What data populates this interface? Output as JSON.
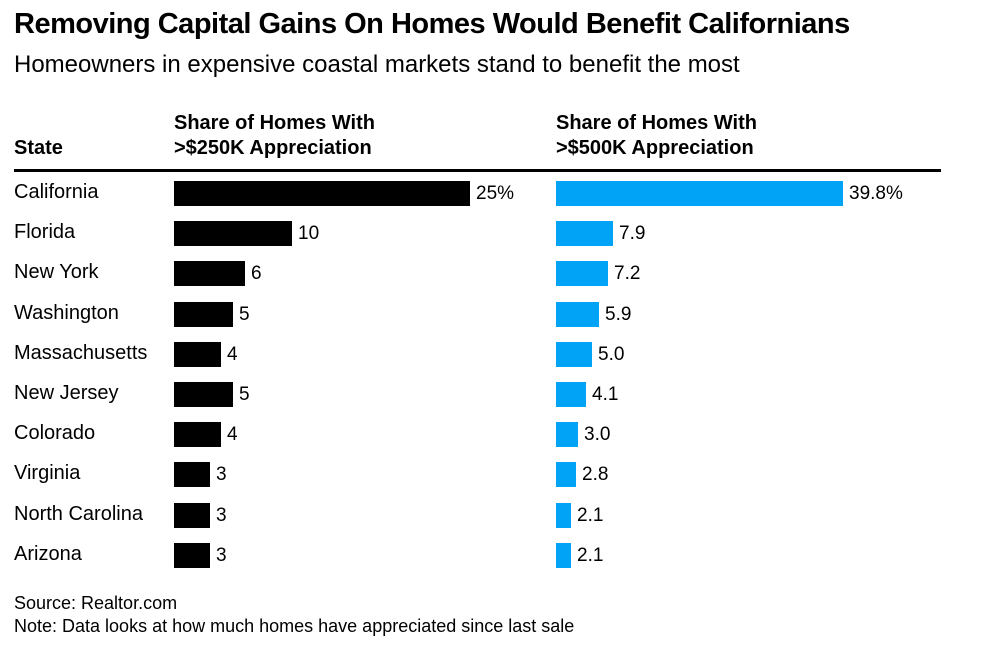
{
  "chart_data": {
    "type": "bar",
    "title": "Removing Capital Gains On Homes Would Benefit Californians",
    "subtitle": "Homeowners in expensive coastal markets stand to benefit the most",
    "category_header": "State",
    "categories": [
      "California",
      "Florida",
      "New York",
      "Washington",
      "Massachusetts",
      "New Jersey",
      "Colorado",
      "Virginia",
      "North Carolina",
      "Arizona"
    ],
    "series": [
      {
        "name": "Share of Homes With >$250K Appreciation",
        "header_lines": [
          "Share of Homes With",
          ">$250K Appreciation"
        ],
        "values": [
          25,
          10,
          6,
          5,
          4,
          5,
          4,
          3,
          3,
          3
        ],
        "labels": [
          "25%",
          "10",
          "6",
          "5",
          "4",
          "5",
          "4",
          "3",
          "3",
          "3"
        ],
        "color": "#000000",
        "xlim": [
          0,
          25
        ]
      },
      {
        "name": "Share of Homes With >$500K Appreciation",
        "header_lines": [
          "Share of Homes With",
          ">$500K Appreciation"
        ],
        "values": [
          39.8,
          7.9,
          7.2,
          5.9,
          5.0,
          4.1,
          3.0,
          2.8,
          2.1,
          2.1
        ],
        "labels": [
          "39.8%",
          "7.9",
          "7.2",
          "5.9",
          "5.0",
          "4.1",
          "3.0",
          "2.8",
          "2.1",
          "2.1"
        ],
        "color": "#00a3f6",
        "xlim": [
          0,
          39.8
        ]
      }
    ],
    "source": "Source: Realtor.com",
    "note": "Note: Data looks at how much homes have appreciated since last sale"
  }
}
